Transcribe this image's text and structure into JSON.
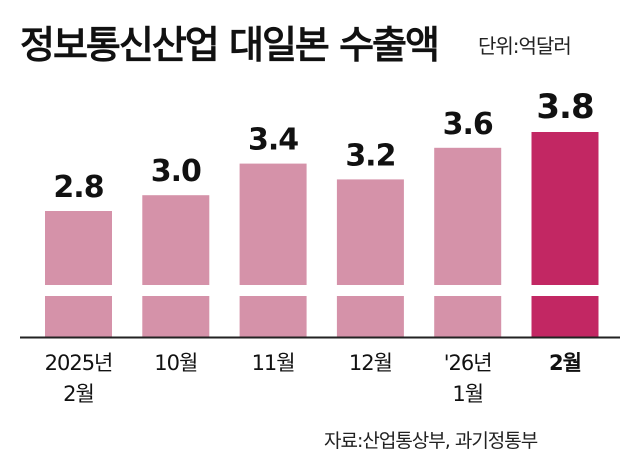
{
  "title": "정보통신산업 대일본 수출액",
  "unit_label": "단위:억달러",
  "source": "자료:산업통상부, 과기정통부",
  "colors": {
    "bar": "#d592a9",
    "highlight": "#c22763",
    "axis": "#222222"
  },
  "chart_data": {
    "type": "bar",
    "title": "정보통신산업 대일본 수출액",
    "xlabel": "",
    "ylabel": "",
    "categories": [
      [
        "2025년",
        "2월"
      ],
      [
        "10월"
      ],
      [
        "11월"
      ],
      [
        "12월"
      ],
      [
        "'26년",
        "1월"
      ],
      [
        "2월"
      ]
    ],
    "values": [
      2.8,
      3.0,
      3.4,
      3.2,
      3.6,
      3.8
    ],
    "value_labels": [
      "2.8",
      "3.0",
      "3.4",
      "3.2",
      "3.6",
      "3.8"
    ],
    "highlight_index": 5,
    "ylim": [
      0,
      3.8
    ],
    "axis_break": true,
    "grid": false,
    "legend": "none"
  }
}
